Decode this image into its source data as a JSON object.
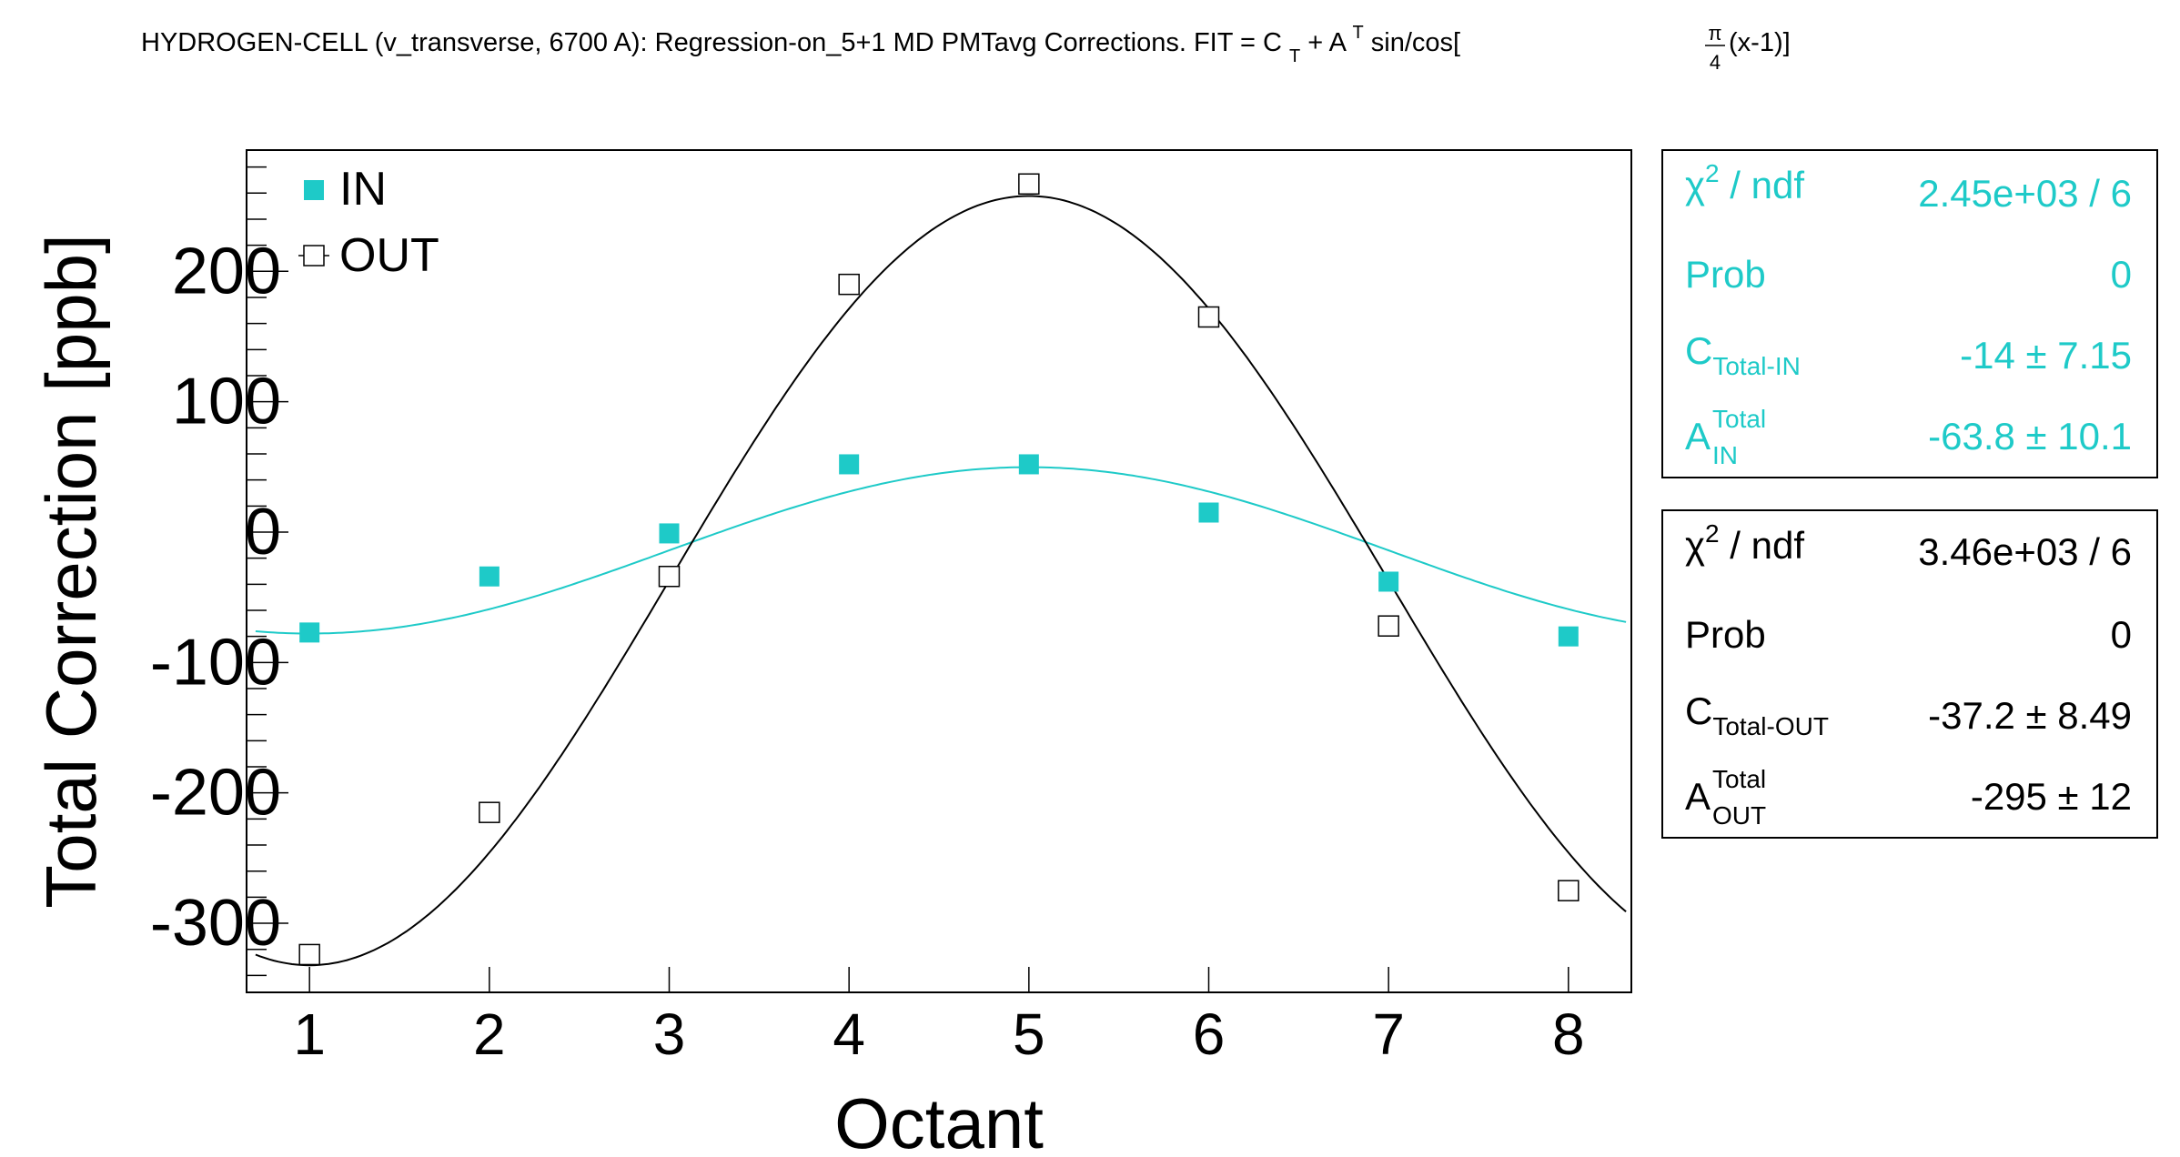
{
  "chart_data": {
    "type": "scatter",
    "title": "HYDROGEN-CELL (v_transverse, 6700 A): Regression-on_5+1 MD PMTavg Corrections. FIT = C",
    "title_parts": {
      "prefix": "HYDROGEN-CELL (v_transverse, 6700 A): Regression-on_5+1 MD PMTavg Corrections. FIT = C",
      "sub_t": "T",
      "plus_a": " + A",
      "sup_t": "T",
      "sincos": "sin/cos[",
      "frac_num": "π",
      "frac_den": "4",
      "tail": "(x-1)]"
    },
    "xlabel": "Octant",
    "ylabel": "Total Correction [ppb]",
    "xlim": [
      0.65,
      8.35
    ],
    "ylim": [
      -353,
      293
    ],
    "x_ticks": [
      1,
      2,
      3,
      4,
      5,
      6,
      7,
      8
    ],
    "y_ticks": [
      -300,
      -200,
      -100,
      0,
      100,
      200
    ],
    "y_tick_labels": [
      "-300",
      "-200",
      "-100",
      "0",
      "100",
      "200"
    ],
    "x_tick_labels": [
      "1",
      "2",
      "3",
      "4",
      "5",
      "6",
      "7",
      "8"
    ],
    "legend": {
      "placement": "top-left",
      "entries": [
        "IN",
        "OUT"
      ]
    },
    "grid": false,
    "series": [
      {
        "name": "IN",
        "color": "#1ecac8",
        "marker": "filled-square",
        "x": [
          1,
          2,
          3,
          4,
          5,
          6,
          7,
          8
        ],
        "y": [
          -77,
          -34,
          -1,
          52,
          52,
          15,
          -38,
          -80
        ],
        "fit": {
          "C": -14,
          "A": -63.8
        }
      },
      {
        "name": "OUT",
        "color": "#000000",
        "marker": "open-square",
        "x": [
          1,
          2,
          3,
          4,
          5,
          6,
          7,
          8
        ],
        "y": [
          -324,
          -215,
          -34,
          190,
          267,
          165,
          -72,
          -275
        ],
        "fit": {
          "C": -37.2,
          "A": -295
        }
      }
    ]
  },
  "stats_in": {
    "color": "#1ecac8",
    "chi_label": "χ",
    "chi_sup": "2",
    "chi_rest": " / ndf",
    "chi_value": "2.45e+03 / 6",
    "prob_label": "Prob",
    "prob_value": "0",
    "c_main": "C",
    "c_sub": "Total-IN",
    "c_value": "-14 ±  7.15",
    "a_main": "A",
    "a_sup": "Total",
    "a_sub": "IN",
    "a_value": "-63.8 ±  10.1"
  },
  "stats_out": {
    "color": "#000000",
    "chi_label": "χ",
    "chi_sup": "2",
    "chi_rest": " / ndf",
    "chi_value": "3.46e+03 / 6",
    "prob_label": "Prob",
    "prob_value": "0",
    "c_main": "C",
    "c_sub": "Total-OUT",
    "c_value": "-37.2 ±  8.49",
    "a_main": "A",
    "a_sup": "Total",
    "a_sub": "OUT",
    "a_value": "-295 ±    12"
  }
}
